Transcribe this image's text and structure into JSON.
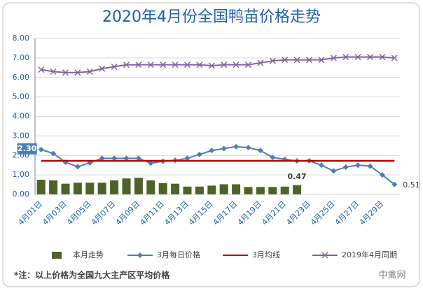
{
  "chart_data": {
    "type": "combo",
    "title": "2020年4月份全国鸭苗价格走势",
    "categories": [
      "4月01日",
      null,
      "4月03日",
      null,
      "4月05日",
      null,
      "4月07日",
      null,
      "4月09日",
      null,
      "4月11日",
      null,
      "4月13日",
      null,
      "4月15日",
      null,
      "4月17日",
      null,
      "4月19日",
      null,
      "4月21日",
      null,
      "4月23日",
      null,
      "4月25日",
      null,
      "4月27日",
      null,
      "4月29日",
      null
    ],
    "series": [
      {
        "name": "本月走势",
        "type": "bar",
        "color": "#4f6228",
        "values": [
          0.75,
          0.72,
          0.55,
          0.6,
          0.6,
          0.6,
          0.72,
          0.82,
          0.85,
          0.72,
          0.58,
          0.55,
          0.4,
          0.4,
          0.45,
          0.52,
          0.52,
          0.38,
          0.38,
          0.38,
          0.4,
          0.47,
          null,
          null,
          null,
          null,
          null,
          null,
          null,
          null
        ],
        "value_labels": [
          null,
          null,
          null,
          null,
          null,
          null,
          null,
          null,
          null,
          null,
          null,
          null,
          null,
          null,
          null,
          null,
          null,
          null,
          null,
          null,
          null,
          "0.47",
          null,
          null,
          null,
          null,
          null,
          null,
          null,
          null
        ]
      },
      {
        "name": "3月每日价格",
        "type": "line",
        "marker": "diamond",
        "color": "#4a7ebb",
        "values": [
          2.3,
          2.1,
          1.65,
          1.42,
          1.62,
          1.85,
          1.85,
          1.85,
          1.85,
          1.6,
          1.7,
          1.75,
          1.85,
          2.05,
          2.25,
          2.35,
          2.45,
          2.4,
          2.25,
          1.9,
          1.8,
          1.72,
          1.72,
          1.5,
          1.2,
          1.4,
          1.5,
          1.45,
          1.0,
          0.51
        ],
        "value_labels": [
          "2.30",
          null,
          null,
          null,
          null,
          null,
          null,
          null,
          null,
          null,
          null,
          null,
          null,
          null,
          null,
          null,
          null,
          null,
          null,
          null,
          null,
          null,
          null,
          null,
          null,
          null,
          null,
          null,
          null,
          "0.51"
        ]
      },
      {
        "name": "3月均线",
        "type": "line",
        "marker": "none",
        "color": "#c00000",
        "values": [
          1.72,
          1.72,
          1.72,
          1.72,
          1.72,
          1.72,
          1.72,
          1.72,
          1.72,
          1.72,
          1.72,
          1.72,
          1.72,
          1.72,
          1.72,
          1.72,
          1.72,
          1.72,
          1.72,
          1.72,
          1.72,
          1.72,
          1.72,
          1.72,
          1.72,
          1.72,
          1.72,
          1.72,
          1.72,
          1.72
        ]
      },
      {
        "name": "2019年4月同期",
        "type": "line",
        "marker": "x",
        "color": "#8064a2",
        "values": [
          6.4,
          6.3,
          6.25,
          6.25,
          6.3,
          6.45,
          6.55,
          6.65,
          6.65,
          6.65,
          6.65,
          6.65,
          6.65,
          6.65,
          6.6,
          6.65,
          6.65,
          6.65,
          6.75,
          6.85,
          6.9,
          6.9,
          6.9,
          6.9,
          7.0,
          7.05,
          7.05,
          7.05,
          7.05,
          7.0
        ]
      }
    ],
    "ylim": [
      0,
      8
    ],
    "yticks": [
      {
        "value": 0,
        "label": "0.00"
      },
      {
        "value": 1,
        "label": "1.00"
      },
      {
        "value": 2,
        "label": "2.00"
      },
      {
        "value": 3,
        "label": "3.00"
      },
      {
        "value": 4,
        "label": "4.00"
      },
      {
        "value": 5,
        "label": "5.00"
      },
      {
        "value": 6,
        "label": "6.00"
      },
      {
        "value": 7,
        "label": "7.00"
      },
      {
        "value": 8,
        "label": "8.00"
      }
    ],
    "grid": true,
    "legend": "bottom",
    "note": "*注：以上价格为全国九大主产区平均价格",
    "watermark": "中禽网"
  }
}
